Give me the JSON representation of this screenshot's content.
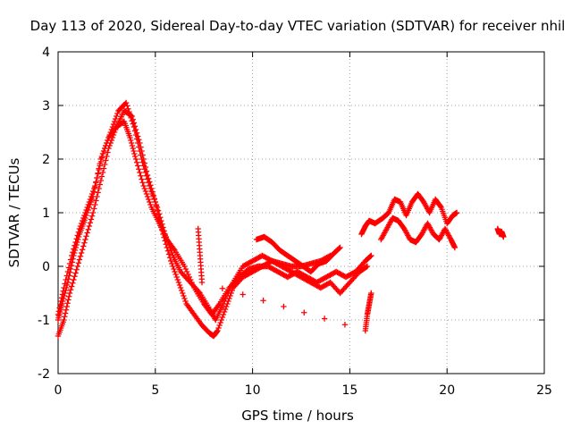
{
  "chart_data": {
    "type": "scatter",
    "title": "Day 113 of 2020, Sidereal Day-to-day VTEC variation (SDTVAR) for receiver nhil",
    "xlabel": "GPS time / hours",
    "ylabel": "SDTVAR / TECUs",
    "xlim": [
      0,
      25
    ],
    "ylim": [
      -2,
      4
    ],
    "xticks": [
      "0",
      "5",
      "10",
      "15",
      "20",
      "25"
    ],
    "yticks": [
      "-2",
      "-1",
      "0",
      "1",
      "2",
      "3",
      "4"
    ],
    "grid": true,
    "marker": "plus",
    "series": [
      {
        "name": "trace-a",
        "color": "#ff0000",
        "x": [
          0.0,
          0.2,
          0.5,
          0.8,
          1.1,
          1.4,
          1.8,
          2.2,
          2.6,
          3.0,
          3.4,
          3.7,
          4.0,
          4.4,
          4.8,
          5.2,
          5.6,
          6.0,
          6.5,
          7.0,
          7.5,
          7.9,
          8.3,
          8.8,
          9.3,
          9.8,
          10.3,
          10.8,
          11.3,
          11.8,
          12.3,
          12.8,
          13.3,
          13.8,
          14.3,
          14.8,
          15.3,
          15.8,
          16.1
        ],
        "y": [
          -1.0,
          -0.7,
          -0.3,
          0.2,
          0.6,
          0.9,
          1.3,
          2.0,
          2.4,
          2.6,
          2.7,
          2.4,
          2.0,
          1.5,
          1.1,
          0.8,
          0.5,
          0.3,
          0.0,
          -0.4,
          -0.7,
          -0.9,
          -0.7,
          -0.4,
          -0.2,
          -0.05,
          0.0,
          0.0,
          -0.1,
          -0.2,
          -0.1,
          -0.2,
          -0.3,
          -0.2,
          -0.1,
          -0.2,
          -0.1,
          0.1,
          0.2
        ]
      },
      {
        "name": "trace-b",
        "color": "#ff0000",
        "x": [
          0.0,
          0.3,
          0.6,
          1.0,
          1.4,
          1.8,
          2.2,
          2.6,
          3.0,
          3.4,
          3.8,
          4.2,
          4.6,
          5.0,
          5.4,
          5.8,
          6.2,
          6.6,
          7.0,
          7.4,
          7.8,
          8.0,
          8.2,
          8.6,
          9.0,
          9.5,
          10.0,
          10.5,
          11.0,
          11.5,
          12.0,
          12.5,
          13.0,
          13.5,
          14.0,
          14.5,
          15.0,
          15.5,
          15.9
        ],
        "y": [
          -1.3,
          -1.0,
          -0.5,
          0.0,
          0.5,
          1.0,
          1.6,
          2.2,
          2.6,
          2.9,
          2.8,
          2.3,
          1.7,
          1.2,
          0.6,
          0.1,
          -0.3,
          -0.7,
          -0.9,
          -1.1,
          -1.25,
          -1.3,
          -1.2,
          -0.8,
          -0.4,
          -0.2,
          -0.1,
          0.0,
          0.1,
          0.0,
          -0.1,
          -0.2,
          -0.3,
          -0.4,
          -0.3,
          -0.5,
          -0.3,
          -0.1,
          0.0
        ]
      },
      {
        "name": "trace-c",
        "color": "#ff0000",
        "x": [
          0.0,
          0.3,
          0.7,
          1.1,
          1.5,
          1.9,
          2.3,
          2.7,
          3.1,
          3.5,
          3.9,
          4.3,
          4.7,
          5.1,
          5.5,
          5.9,
          6.3,
          6.8,
          7.3,
          7.8,
          8.1,
          8.5,
          9.0,
          9.5,
          10.0,
          10.5,
          11.0,
          11.5,
          12.0,
          12.5,
          13.0,
          13.5,
          14.0
        ],
        "y": [
          -0.9,
          -0.4,
          0.2,
          0.7,
          1.1,
          1.5,
          2.1,
          2.5,
          2.9,
          3.05,
          2.6,
          2.0,
          1.5,
          1.1,
          0.6,
          0.2,
          -0.1,
          -0.3,
          -0.5,
          -0.8,
          -1.0,
          -0.7,
          -0.3,
          0.0,
          0.1,
          0.2,
          0.1,
          0.05,
          0.0,
          0.0,
          0.05,
          0.1,
          0.2
        ]
      },
      {
        "name": "trace-d",
        "color": "#ff0000",
        "x": [
          10.2,
          10.6,
          11.0,
          11.4,
          11.8,
          12.2,
          12.6,
          13.0,
          13.4,
          13.8,
          14.2,
          14.5
        ],
        "y": [
          0.5,
          0.55,
          0.45,
          0.3,
          0.2,
          0.1,
          0.0,
          -0.1,
          0.05,
          0.1,
          0.25,
          0.35
        ]
      },
      {
        "name": "trace-e",
        "color": "#ff0000",
        "x": [
          7.2,
          7.3,
          7.4,
          15.8,
          15.9,
          16.0,
          16.1
        ],
        "y": [
          0.7,
          0.2,
          -0.3,
          -1.2,
          -0.9,
          -0.7,
          -0.5
        ]
      },
      {
        "name": "trace-f",
        "color": "#ff0000",
        "x": [
          15.6,
          15.8,
          16.0,
          16.3,
          16.7,
          17.0,
          17.3,
          17.6,
          17.9,
          18.2,
          18.5,
          18.8,
          19.1,
          19.4,
          19.7,
          20.0,
          20.3,
          20.5
        ],
        "y": [
          0.6,
          0.75,
          0.85,
          0.8,
          0.9,
          1.0,
          1.25,
          1.2,
          0.95,
          1.2,
          1.35,
          1.2,
          1.0,
          1.25,
          1.1,
          0.8,
          0.95,
          1.0
        ]
      },
      {
        "name": "trace-g",
        "color": "#ff0000",
        "x": [
          16.6,
          16.9,
          17.2,
          17.5,
          17.8,
          18.1,
          18.4,
          18.7,
          19.0,
          19.3,
          19.6,
          19.9,
          20.2,
          20.4
        ],
        "y": [
          0.5,
          0.7,
          0.9,
          0.85,
          0.7,
          0.5,
          0.45,
          0.6,
          0.8,
          0.6,
          0.5,
          0.7,
          0.5,
          0.35
        ]
      },
      {
        "name": "trace-h",
        "color": "#ff0000",
        "x": [
          22.6,
          22.7,
          22.8,
          22.9
        ],
        "y": [
          0.7,
          0.6,
          0.65,
          0.55
        ]
      }
    ]
  }
}
